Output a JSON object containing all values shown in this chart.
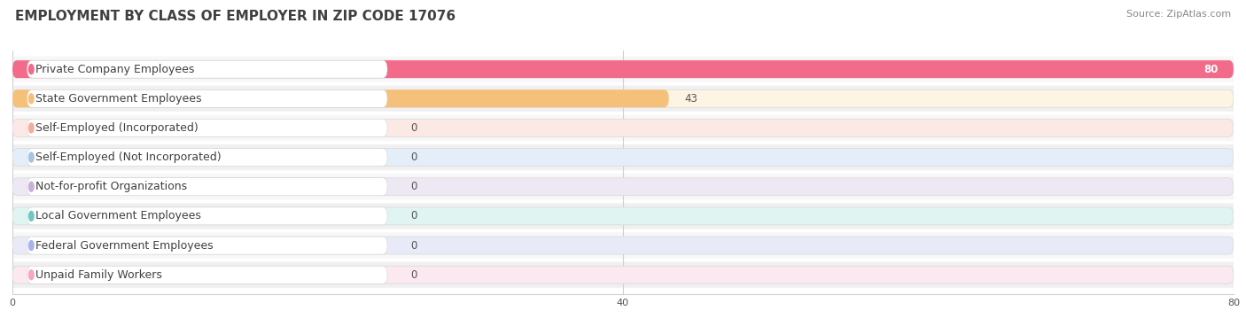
{
  "title": "EMPLOYMENT BY CLASS OF EMPLOYER IN ZIP CODE 17076",
  "source": "Source: ZipAtlas.com",
  "categories": [
    "Private Company Employees",
    "State Government Employees",
    "Self-Employed (Incorporated)",
    "Self-Employed (Not Incorporated)",
    "Not-for-profit Organizations",
    "Local Government Employees",
    "Federal Government Employees",
    "Unpaid Family Workers"
  ],
  "values": [
    80,
    43,
    0,
    0,
    0,
    0,
    0,
    0
  ],
  "bar_colors": [
    "#f26b8a",
    "#f5c07a",
    "#f5aba0",
    "#a8c4e0",
    "#c8b0d8",
    "#70c8c0",
    "#a8b4e8",
    "#f5a8c0"
  ],
  "bar_bg_colors": [
    "#fce8ee",
    "#fef4e4",
    "#fce8e4",
    "#e4eef8",
    "#ede8f4",
    "#e0f4f2",
    "#e8eaf8",
    "#fce8f0"
  ],
  "xlim": [
    0,
    80
  ],
  "xticks": [
    0,
    40,
    80
  ],
  "title_fontsize": 11,
  "label_fontsize": 9,
  "value_fontsize": 8.5,
  "source_fontsize": 8,
  "grid_color": "#d0d0d0",
  "title_color": "#404040",
  "source_color": "#888888"
}
